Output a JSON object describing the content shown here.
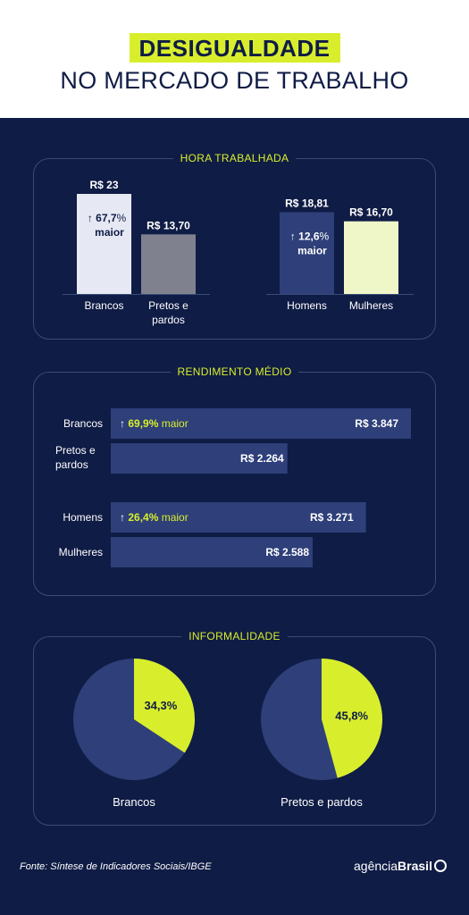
{
  "header": {
    "title_line1": "DESIGUALDADE",
    "title_line2": "NO MERCADO DE TRABALHO"
  },
  "footer": {
    "source": "Fonte:  Síntese de Indicadores Sociais/IBGE",
    "logo_light": "agência",
    "logo_bold": "Brasil"
  },
  "colors": {
    "background": "#0f1c45",
    "accent": "#d8ee2c",
    "bar_blue": "#2e3f79",
    "bar_brancos": "#e6e8f3",
    "bar_pretos": "#7f818e",
    "bar_mulheres": "#eff6c8"
  },
  "chart_data": [
    {
      "type": "bar",
      "title": "HORA TRABALHADA",
      "categories": [
        "Brancos",
        "Pretos e pardos",
        "Homens",
        "Mulheres"
      ],
      "values": [
        23,
        13.7,
        18.81,
        16.7
      ],
      "value_labels": [
        "R$ 23",
        "R$ 13,70",
        "R$ 18,81",
        "R$ 16,70"
      ],
      "annotations": [
        {
          "category": "Brancos",
          "pct": "67,7%",
          "word": "maior"
        },
        {
          "category": "Homens",
          "pct": "12,6%",
          "word": "maior"
        }
      ],
      "grid": false
    },
    {
      "type": "bar",
      "orientation": "horizontal",
      "title": "RENDIMENTO MÉDIO",
      "categories": [
        "Brancos",
        "Pretos e pardos",
        "Homens",
        "Mulheres"
      ],
      "values": [
        3847,
        2264,
        3271,
        2588
      ],
      "value_labels": [
        "R$ 3.847",
        "R$ 2.264",
        "R$ 3.271",
        "R$ 2.588"
      ],
      "annotations": [
        {
          "category": "Brancos",
          "pct": "69,9%",
          "word": "maior"
        },
        {
          "category": "Homens",
          "pct": "26,4%",
          "word": "maior"
        }
      ],
      "grid": false
    },
    {
      "type": "pie",
      "title": "INFORMALIDADE",
      "pies": [
        {
          "label": "Brancos",
          "value": 34.3,
          "value_label": "34,3%"
        },
        {
          "label": "Pretos e pardos",
          "value": 45.8,
          "value_label": "45,8%"
        }
      ]
    }
  ]
}
